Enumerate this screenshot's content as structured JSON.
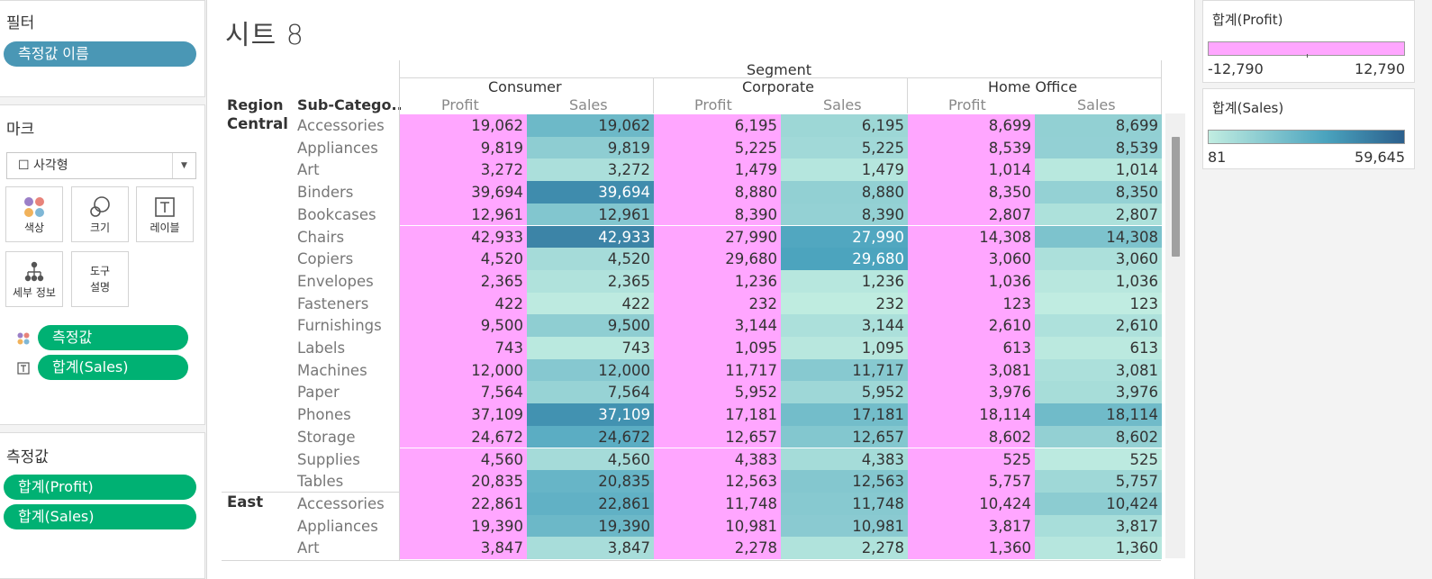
{
  "filters": {
    "title": "필터",
    "pill": "측정값 이름"
  },
  "marks": {
    "title": "마크",
    "mark_type": "☐ 사각형",
    "buttons": {
      "color": "색상",
      "size": "크기",
      "label": "레이블",
      "detail": "세부 정보",
      "tooltip_line1": "도구",
      "tooltip_line2": "설명"
    },
    "color_pill": "측정값",
    "label_pill": "합계(Sales)"
  },
  "measure_values": {
    "title": "측정값",
    "pills": [
      "합계(Profit)",
      "합계(Sales)"
    ]
  },
  "sheet": {
    "title": "시트 8",
    "headers": {
      "segment": "Segment",
      "region": "Region",
      "subcategory": "Sub-Catego..",
      "segments": [
        "Consumer",
        "Corporate",
        "Home Office"
      ],
      "measures": [
        "Profit",
        "Sales"
      ]
    }
  },
  "legends": {
    "profit": {
      "title": "합계(Profit)",
      "min": "-12,790",
      "max": "12,790",
      "color": "#ffa6ff"
    },
    "sales": {
      "title": "합계(Sales)",
      "min": "81",
      "max": "59,645",
      "color_low": "#c1ede1",
      "color_mid": "#4aa3be",
      "color_high": "#2b5f8c"
    }
  },
  "table_rows": [
    {
      "region": "Central",
      "sub": "Accessories",
      "v": [
        "19,062",
        "6,195",
        "8,699"
      ]
    },
    {
      "region": "",
      "sub": "Appliances",
      "v": [
        "9,819",
        "5,225",
        "8,539"
      ]
    },
    {
      "region": "",
      "sub": "Art",
      "v": [
        "3,272",
        "1,479",
        "1,014"
      ]
    },
    {
      "region": "",
      "sub": "Binders",
      "v": [
        "39,694",
        "8,880",
        "8,350"
      ]
    },
    {
      "region": "",
      "sub": "Bookcases",
      "v": [
        "12,961",
        "8,390",
        "2,807"
      ]
    },
    {
      "region": "",
      "sub": "Chairs",
      "v": [
        "42,933",
        "27,990",
        "14,308"
      ]
    },
    {
      "region": "",
      "sub": "Copiers",
      "v": [
        "4,520",
        "29,680",
        "3,060"
      ]
    },
    {
      "region": "",
      "sub": "Envelopes",
      "v": [
        "2,365",
        "1,236",
        "1,036"
      ]
    },
    {
      "region": "",
      "sub": "Fasteners",
      "v": [
        "422",
        "232",
        "123"
      ]
    },
    {
      "region": "",
      "sub": "Furnishings",
      "v": [
        "9,500",
        "3,144",
        "2,610"
      ]
    },
    {
      "region": "",
      "sub": "Labels",
      "v": [
        "743",
        "1,095",
        "613"
      ]
    },
    {
      "region": "",
      "sub": "Machines",
      "v": [
        "12,000",
        "11,717",
        "3,081"
      ]
    },
    {
      "region": "",
      "sub": "Paper",
      "v": [
        "7,564",
        "5,952",
        "3,976"
      ]
    },
    {
      "region": "",
      "sub": "Phones",
      "v": [
        "37,109",
        "17,181",
        "18,114"
      ]
    },
    {
      "region": "",
      "sub": "Storage",
      "v": [
        "24,672",
        "12,657",
        "8,602"
      ]
    },
    {
      "region": "",
      "sub": "Supplies",
      "v": [
        "4,560",
        "4,383",
        "525"
      ]
    },
    {
      "region": "",
      "sub": "Tables",
      "v": [
        "20,835",
        "12,563",
        "5,757"
      ]
    },
    {
      "region": "East",
      "sub": "Accessories",
      "v": [
        "22,861",
        "11,748",
        "10,424"
      ]
    },
    {
      "region": "",
      "sub": "Appliances",
      "v": [
        "19,390",
        "10,981",
        "3,817"
      ]
    },
    {
      "region": "",
      "sub": "Art",
      "v": [
        "3,847",
        "2,278",
        "1,360"
      ]
    }
  ]
}
